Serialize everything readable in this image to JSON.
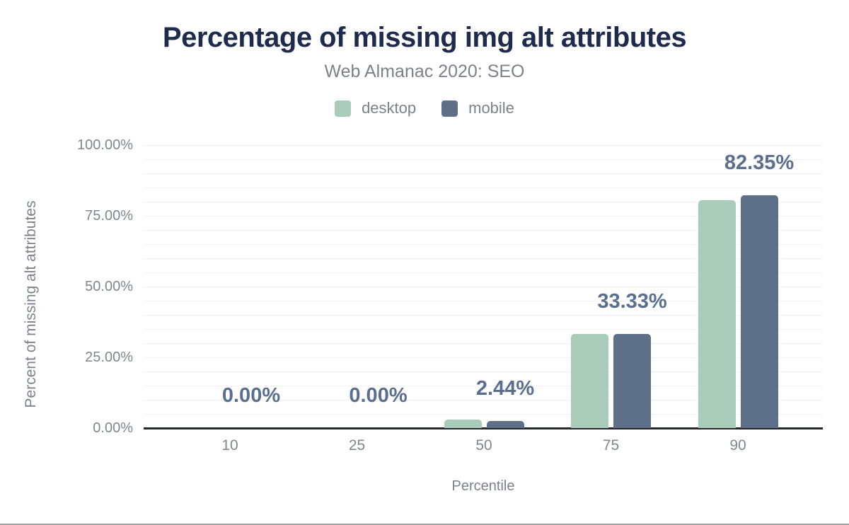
{
  "header": {
    "title": "Percentage of missing img alt attributes",
    "subtitle": "Web Almanac 2020: SEO"
  },
  "legend": {
    "position": "top",
    "items": [
      {
        "label": "desktop",
        "color": "#a9cbb9"
      },
      {
        "label": "mobile",
        "color": "#5e6f88"
      }
    ]
  },
  "chart_data": {
    "type": "bar",
    "title": "Percentage of missing img alt attributes",
    "subtitle": "Web Almanac 2020: SEO",
    "xlabel": "Percentile",
    "ylabel": "Percent of missing alt attributes",
    "categories": [
      "10",
      "25",
      "50",
      "75",
      "90"
    ],
    "series": [
      {
        "name": "desktop",
        "color": "#a9cbb9",
        "values": [
          0,
          0,
          2.99,
          33.33,
          80.5
        ]
      },
      {
        "name": "mobile",
        "color": "#5e6f88",
        "values": [
          0,
          0,
          2.44,
          33.33,
          82.35
        ]
      }
    ],
    "data_labels": {
      "labeled_series": "mobile",
      "values": [
        "0.00%",
        "0.00%",
        "2.44%",
        "33.33%",
        "82.35%"
      ]
    },
    "y_ticks": [
      {
        "label": "100.00%",
        "value": 100
      },
      {
        "label": "75.00%",
        "value": 75
      },
      {
        "label": "50.00%",
        "value": 50
      },
      {
        "label": "25.00%",
        "value": 25
      },
      {
        "label": "0.00%",
        "value": 0
      }
    ],
    "ylim": [
      0,
      100
    ],
    "grid": {
      "horizontal": true,
      "minor_interval_percent": 5
    },
    "legend_position": "top"
  },
  "colors": {
    "title_navy": "#1e2b4d",
    "subtitle_gray": "#7d828a",
    "tick_gray": "#82868d",
    "data_label_blue": "#5a6e8e",
    "desktop_bar": "#a9cbb9",
    "mobile_bar": "#5e6f88",
    "axis_line": "#26282b",
    "gridline": "#f2f2f3",
    "page_bottom_line": "#a0a0a3",
    "background": "#ffffff"
  }
}
